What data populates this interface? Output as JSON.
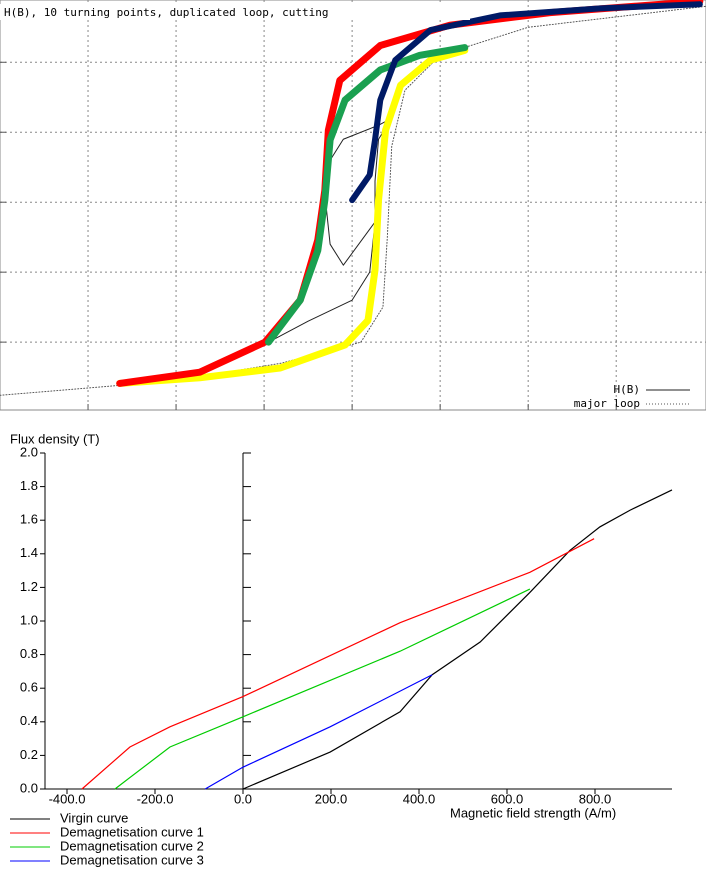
{
  "chart_data": [
    {
      "type": "line",
      "title": "H(B), 10 turning points, duplicated loop, cutting",
      "xlim": [
        -4,
        4.02
      ],
      "ylim": [
        -2.97,
        2.89
      ],
      "xticks": [
        -3,
        -2,
        -1,
        0,
        1,
        2,
        3
      ],
      "yticks": [
        -2,
        -1,
        0,
        1,
        2
      ],
      "grid": true,
      "series": [
        {
          "name": "major loop",
          "color": "#555555",
          "dotted": true,
          "width": 1,
          "x": [
            -4,
            -2,
            -0.8,
            0.1,
            0.35,
            0.4,
            0.45,
            0.6,
            1.0,
            2,
            4.02
          ],
          "y": [
            -2.76,
            -2.55,
            -2.3,
            -2.0,
            -1.5,
            -0.5,
            0.8,
            1.6,
            2.1,
            2.5,
            2.8
          ]
        },
        {
          "name": "H(B)",
          "color": "#222222",
          "width": 1,
          "x": [
            -0.95,
            -0.5,
            0,
            0.2,
            0.26,
            0.26,
            0.3,
            0.45,
            0.3,
            -0.1,
            -0.25,
            -0.3,
            -0.25,
            -0.1,
            0.25
          ],
          "y": [
            -2.0,
            -1.7,
            -1.4,
            -1.0,
            -0.3,
            0.3,
            0.9,
            1.2,
            1.1,
            0.9,
            0.6,
            0,
            -0.6,
            -0.9,
            -0.3
          ]
        },
        {
          "color": "#ffff00",
          "width": 7,
          "x": [
            -2.64,
            -1.73,
            -0.82,
            -0.08,
            0.18,
            0.26,
            0.3,
            0.38,
            0.55,
            0.89,
            1.28
          ],
          "y": [
            -2.59,
            -2.51,
            -2.37,
            -2.04,
            -1.69,
            -0.97,
            0.03,
            1.03,
            1.67,
            2.03,
            2.17
          ]
        },
        {
          "color": "#ff0000",
          "width": 7,
          "x": [
            -2.64,
            -1.73,
            -0.99,
            -0.59,
            -0.39,
            -0.31,
            -0.27,
            -0.14,
            0.32,
            1.11,
            2.25,
            3.95
          ],
          "y": [
            -2.59,
            -2.43,
            -2.0,
            -1.4,
            -0.54,
            0.17,
            1.03,
            1.74,
            2.24,
            2.53,
            2.71,
            2.87
          ]
        },
        {
          "color": "#1aa050",
          "width": 7,
          "x": [
            -0.95,
            -0.59,
            -0.39,
            -0.31,
            -0.25,
            -0.08,
            0.32,
            0.77,
            1.28
          ],
          "y": [
            -2.0,
            -1.4,
            -0.69,
            0.03,
            0.89,
            1.46,
            1.89,
            2.1,
            2.21
          ]
        },
        {
          "color": "#001a66",
          "width": 6,
          "x": [
            0,
            0.2,
            0.26,
            0.32,
            0.49,
            0.89,
            1.68,
            2.82,
            3.95
          ],
          "y": [
            0.03,
            0.39,
            0.89,
            1.46,
            2.03,
            2.46,
            2.67,
            2.77,
            2.83
          ]
        }
      ]
    },
    {
      "type": "line",
      "y_label": "Flux density (T)",
      "x_label": "Magnetic field strength (A/m)",
      "xlim": [
        -450,
        975
      ],
      "ylim": [
        0,
        2.0
      ],
      "xticks": [
        {
          "value": -400,
          "label": "-400.0"
        },
        {
          "value": -200,
          "label": "-200.0"
        },
        {
          "value": 0,
          "label": "0.0"
        },
        {
          "value": 200,
          "label": "200.0"
        },
        {
          "value": 400,
          "label": "400.0"
        },
        {
          "value": 600,
          "label": "600.0"
        },
        {
          "value": 800,
          "label": "800.0"
        }
      ],
      "yticks": [
        {
          "value": 0,
          "label": "0.0"
        },
        0.2,
        0.4,
        0.6,
        0.8,
        {
          "value": 1,
          "label": "1.0"
        },
        1.2,
        1.4,
        1.6,
        1.8,
        {
          "value": 2,
          "label": "2.0"
        }
      ],
      "series": [
        {
          "name": "Virgin curve",
          "color": "#000000",
          "x": [
            0,
            198,
            357,
            430,
            539,
            652,
            743,
            811,
            880,
            975
          ],
          "y": [
            0,
            0.22,
            0.46,
            0.68,
            0.875,
            1.17,
            1.42,
            1.56,
            1.66,
            1.78
          ]
        },
        {
          "name": "Demagnetisation curve 1",
          "color": "#ff0000",
          "x": [
            -366,
            -257,
            -166,
            0,
            357,
            652,
            798
          ],
          "y": [
            0,
            0.25,
            0.37,
            0.55,
            0.99,
            1.29,
            1.49
          ]
        },
        {
          "name": "Demagnetisation curve 2",
          "color": "#00cc00",
          "x": [
            -291,
            -166,
            0,
            357,
            652
          ],
          "y": [
            0,
            0.25,
            0.43,
            0.82,
            1.19
          ]
        },
        {
          "name": "Demagnetisation curve 3",
          "color": "#0000ff",
          "x": [
            -86,
            0,
            198,
            430
          ],
          "y": [
            0,
            0.13,
            0.37,
            0.68
          ]
        }
      ]
    }
  ]
}
